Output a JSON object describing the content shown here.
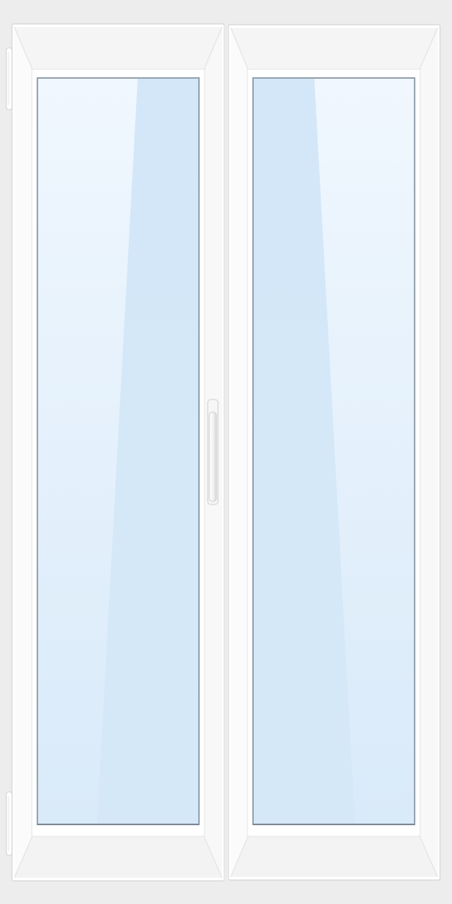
{
  "window": {
    "colors": {
      "background": "#ededed",
      "frame": "#ffffff",
      "frame_shade": "#f1f1f1",
      "frame_edge": "#dcdcdc",
      "glass_light": "#f0f7fe",
      "glass_dark": "#d3e7f8",
      "glass_border": "#9aa6b2",
      "glass_shadow": "#7f8a96"
    },
    "sashes": [
      {
        "name": "left-sash",
        "hinge_side": "left",
        "has_handle": true
      },
      {
        "name": "right-sash",
        "hinge_side": "none",
        "has_handle": false
      }
    ],
    "icons": {
      "handle": "window-handle-icon",
      "hinge": "hinge-icon"
    }
  }
}
